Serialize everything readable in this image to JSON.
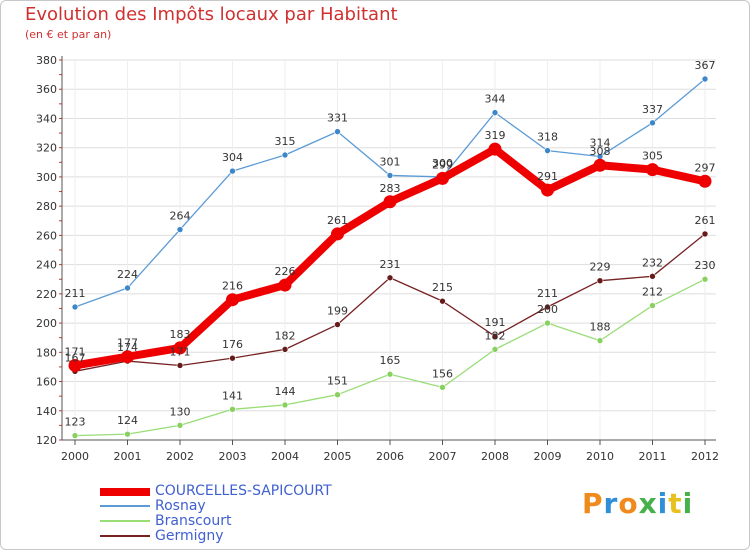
{
  "chart_data": {
    "type": "line",
    "title": "Evolution des Impôts locaux par Habitant",
    "subtitle": "(en € et par an)",
    "x": [
      "2000",
      "2001",
      "2002",
      "2003",
      "2004",
      "2005",
      "2006",
      "2007",
      "2008",
      "2009",
      "2010",
      "2011",
      "2012"
    ],
    "ylim": [
      120,
      380
    ],
    "yticks": [
      120,
      140,
      160,
      180,
      200,
      220,
      240,
      260,
      280,
      300,
      320,
      340,
      360,
      380
    ],
    "grid": true,
    "legend_position": "bottom-left",
    "series": [
      {
        "name": "COURCELLES-SAPICOURT",
        "color": "#ee0000",
        "values": [
          171,
          177,
          183,
          216,
          226,
          261,
          283,
          299,
          319,
          291,
          308,
          305,
          297
        ]
      },
      {
        "name": "Rosnay",
        "color": "#5b9bd5",
        "values": [
          211,
          224,
          264,
          304,
          315,
          331,
          301,
          300,
          344,
          318,
          314,
          337,
          367
        ]
      },
      {
        "name": "Branscourt",
        "color": "#99dd77",
        "values": [
          123,
          124,
          130,
          141,
          144,
          151,
          165,
          156,
          182,
          200,
          188,
          212,
          230
        ]
      },
      {
        "name": "Germigny",
        "color": "#772222",
        "values": [
          167,
          174,
          171,
          176,
          182,
          199,
          231,
          215,
          191,
          211,
          229,
          232,
          261
        ]
      }
    ]
  },
  "brand": {
    "letters": [
      "P",
      "r",
      "o",
      "x",
      "i",
      "t",
      "i"
    ]
  }
}
